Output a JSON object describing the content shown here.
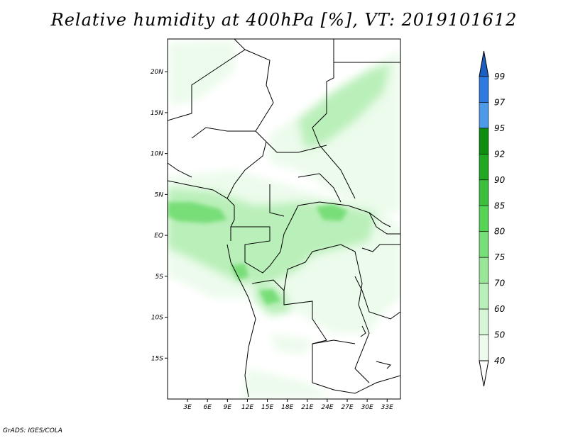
{
  "title": "Relative humidity at 400hPa [%], VT: 2019101612",
  "credit": "GrADS: IGES/COLA",
  "map": {
    "lon_range": [
      0,
      35
    ],
    "lat_range": [
      -20,
      24
    ],
    "lon_ticks": [
      "3E",
      "6E",
      "9E",
      "12E",
      "15E",
      "18E",
      "21E",
      "24E",
      "27E",
      "30E",
      "33E"
    ],
    "lat_ticks": [
      "20N",
      "15N",
      "10N",
      "5N",
      "EQ",
      "5S",
      "10S",
      "15S"
    ],
    "background": "#ffffff",
    "border_color": "#000000"
  },
  "colorbar": {
    "levels": [
      "99",
      "97",
      "95",
      "92",
      "90",
      "85",
      "80",
      "75",
      "70",
      "60",
      "50",
      "40"
    ],
    "colors_top_to_bottom": [
      "#1c5fc4",
      "#2d7be0",
      "#4d9be8",
      "#0e8e0e",
      "#21a821",
      "#3cbf3c",
      "#55d455",
      "#78de78",
      "#99e699",
      "#b9efb9",
      "#d6f6d6",
      "#ecfbec",
      "#ffffff"
    ]
  },
  "humidity_colors": {
    "40": "#ecfbec",
    "50": "#d6f6d6",
    "60": "#b9efb9",
    "70": "#99e699",
    "75": "#78de78",
    "80": "#55d455"
  }
}
